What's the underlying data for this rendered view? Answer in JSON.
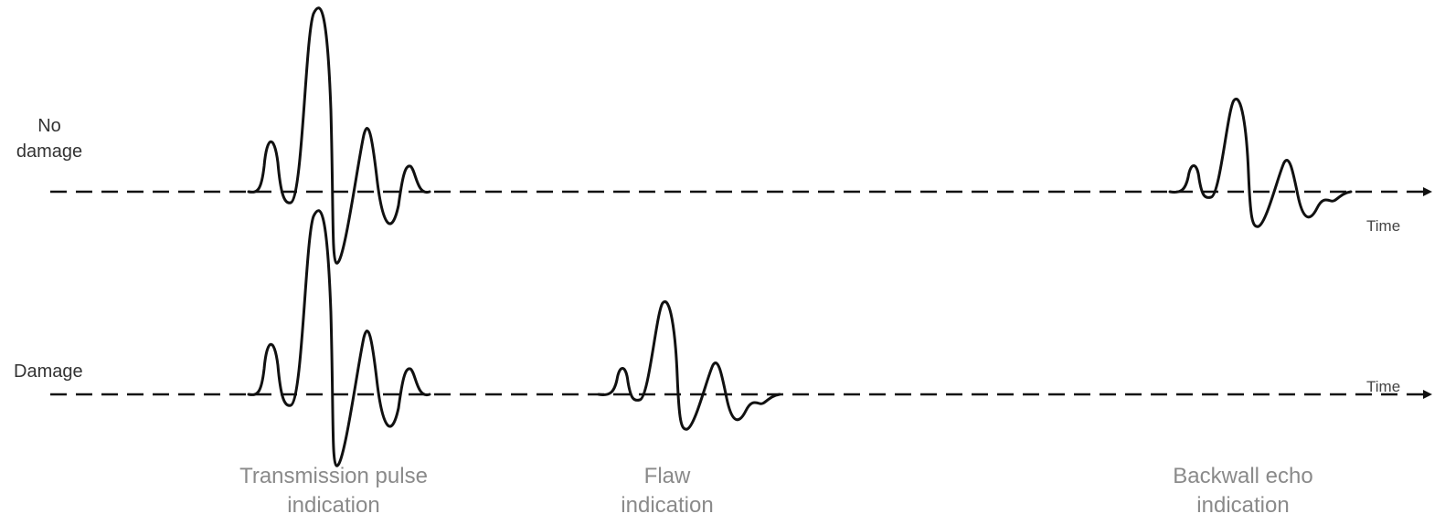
{
  "rows": {
    "no_damage": {
      "label_line1": "No",
      "label_line2": "damage",
      "axis_label": "Time"
    },
    "damage": {
      "label": "Damage",
      "axis_label": "Time"
    }
  },
  "captions": {
    "transmission": {
      "line1": "Transmission pulse",
      "line2": "indication"
    },
    "flaw": {
      "line1": "Flaw",
      "line2": "indication"
    },
    "backwall": {
      "line1": "Backwall echo",
      "line2": "indication"
    }
  },
  "colors": {
    "signal": "#111111",
    "axis": "#111111",
    "caption": "#8a8a8a",
    "label": "#333333"
  }
}
